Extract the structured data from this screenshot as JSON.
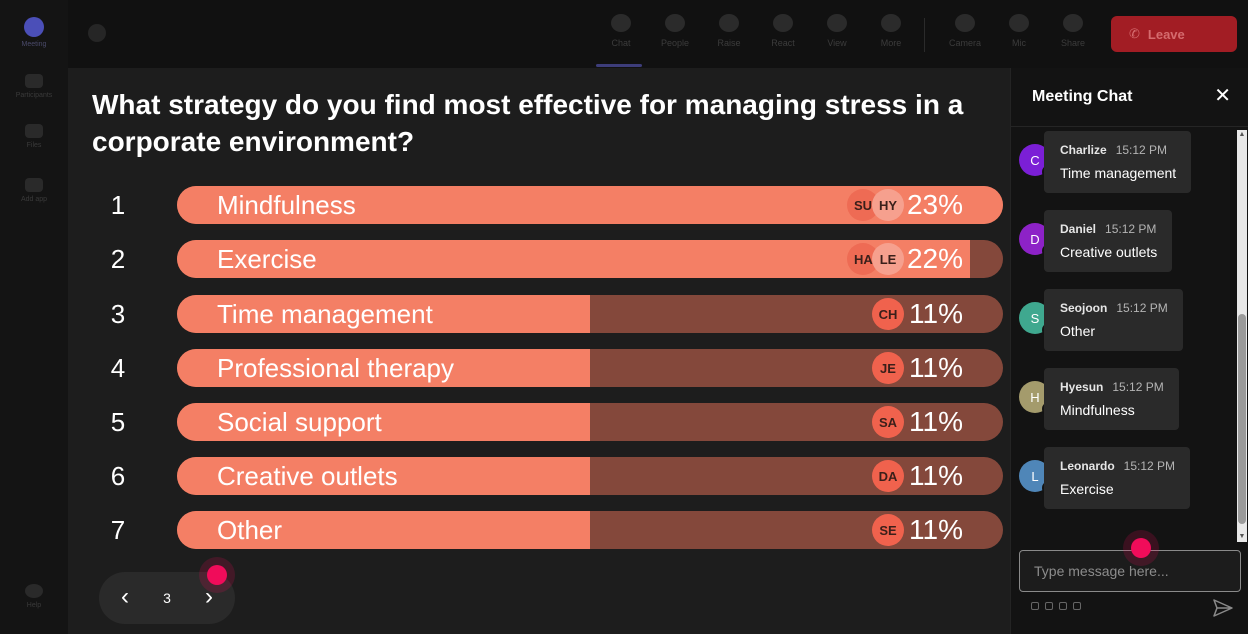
{
  "rail": {
    "items": [
      {
        "icon": "meeting-icon",
        "label": "Meeting"
      },
      {
        "icon": "participants-icon",
        "label": "Participants"
      },
      {
        "icon": "files-icon",
        "label": "Files"
      },
      {
        "icon": "add-app-icon",
        "label": "Add app"
      },
      {
        "icon": "help-icon",
        "label": "Help"
      }
    ]
  },
  "toolbar": {
    "buttons": [
      {
        "icon": "chat-icon",
        "label": "Chat"
      },
      {
        "icon": "people-icon",
        "label": "People"
      },
      {
        "icon": "raise-hand-icon",
        "label": "Raise"
      },
      {
        "icon": "react-icon",
        "label": "React"
      },
      {
        "icon": "view-icon",
        "label": "View"
      },
      {
        "icon": "more-icon",
        "label": "More"
      },
      {
        "icon": "camera-icon",
        "label": "Camera"
      },
      {
        "icon": "mic-icon",
        "label": "Mic"
      },
      {
        "icon": "share-icon",
        "label": "Share"
      }
    ],
    "leave_label": "Leave"
  },
  "poll": {
    "question": "What strategy do you find most effective for managing stress in a corporate environment?",
    "options": [
      {
        "rank": "1",
        "label": "Mindfulness",
        "percent": "23%",
        "fraction": 1.0,
        "avatars": [
          "SU",
          "HY"
        ]
      },
      {
        "rank": "2",
        "label": "Exercise",
        "percent": "22%",
        "fraction": 0.96,
        "avatars": [
          "HA",
          "LE"
        ]
      },
      {
        "rank": "3",
        "label": "Time management",
        "percent": "11%",
        "fraction": 0.5,
        "avatars": [
          "CH"
        ]
      },
      {
        "rank": "4",
        "label": "Professional therapy",
        "percent": "11%",
        "fraction": 0.5,
        "avatars": [
          "JE"
        ]
      },
      {
        "rank": "5",
        "label": "Social support",
        "percent": "11%",
        "fraction": 0.5,
        "avatars": [
          "SA"
        ]
      },
      {
        "rank": "6",
        "label": "Creative outlets",
        "percent": "11%",
        "fraction": 0.5,
        "avatars": [
          "DA"
        ]
      },
      {
        "rank": "7",
        "label": "Other",
        "percent": "11%",
        "fraction": 0.5,
        "avatars": [
          "SE"
        ]
      }
    ],
    "colors": {
      "fill": "#f47f65",
      "track": "#84483b"
    }
  },
  "pager": {
    "prev": "‹",
    "page": "3",
    "next": "›"
  },
  "chat": {
    "title": "Meeting Chat",
    "close": "✕",
    "messages": [
      {
        "initial": "C",
        "name": "Charlize",
        "time": "15:12 PM",
        "text": "Time management",
        "color": "#7b1fd6"
      },
      {
        "initial": "D",
        "name": "Daniel",
        "time": "15:12 PM",
        "text": "Creative outlets",
        "color": "#8d22c7"
      },
      {
        "initial": "S",
        "name": "Seojoon",
        "time": "15:12 PM",
        "text": "Other",
        "color": "#3fa88f"
      },
      {
        "initial": "H",
        "name": "Hyesun",
        "time": "15:12 PM",
        "text": "Mindfulness",
        "color": "#a49b6c"
      },
      {
        "initial": "L",
        "name": "Leonardo",
        "time": "15:12 PM",
        "text": "Exercise",
        "color": "#4f86b8"
      }
    ],
    "input_placeholder": "Type message here..."
  }
}
